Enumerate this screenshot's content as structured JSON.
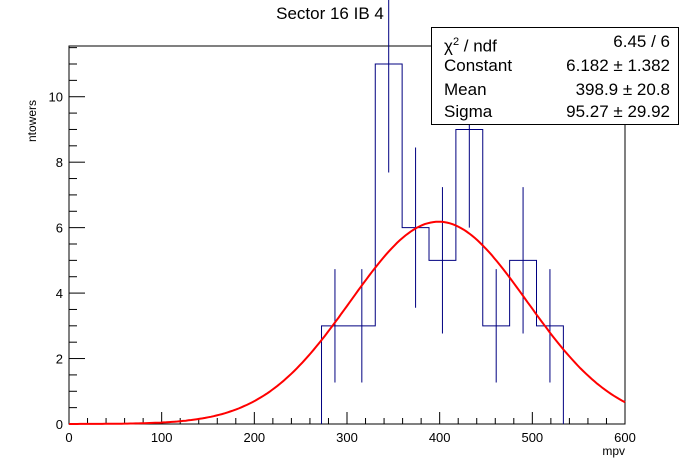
{
  "chart_data": {
    "type": "histogram",
    "title": "Sector 16 IB 4",
    "xlabel": "mpv",
    "ylabel": "ntowers",
    "xlim": [
      0,
      600
    ],
    "ylim": [
      0,
      11.55
    ],
    "x_ticks": [
      0,
      100,
      200,
      300,
      400,
      500,
      600
    ],
    "y_ticks": [
      0,
      2,
      4,
      6,
      8,
      10
    ],
    "bin_width": 29,
    "bins": [
      {
        "center": 287,
        "count": 3
      },
      {
        "center": 316,
        "count": 3
      },
      {
        "center": 345,
        "count": 11
      },
      {
        "center": 374,
        "count": 6
      },
      {
        "center": 403,
        "count": 5
      },
      {
        "center": 432,
        "count": 9
      },
      {
        "center": 461,
        "count": 3
      },
      {
        "center": 490,
        "count": 5
      },
      {
        "center": 519,
        "count": 3
      }
    ],
    "fit": {
      "function": "gaus",
      "constant": 6.182,
      "mean": 398.9,
      "sigma": 95.27,
      "color": "#ff0000"
    },
    "histogram_color": "#000080"
  },
  "stats": {
    "chi2_label": "χ",
    "chi2_sup": "2",
    "chi2_suffix": " / ndf",
    "chi2_value": "6.45 / 6",
    "rows": [
      {
        "name": "Constant",
        "value": "6.182 ± 1.382"
      },
      {
        "name": "Mean",
        "value": "398.9 ± 20.8"
      },
      {
        "name": "Sigma",
        "value": "95.27 ± 29.92"
      }
    ]
  }
}
